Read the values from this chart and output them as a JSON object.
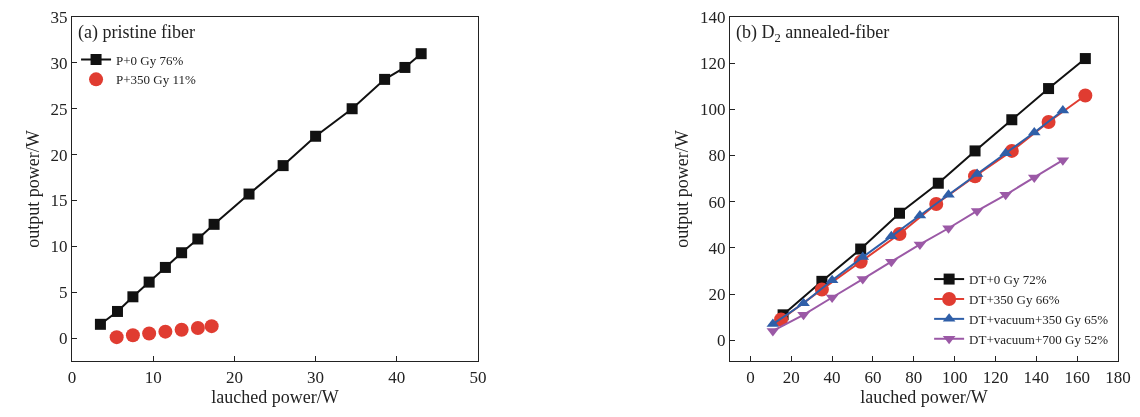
{
  "chart_data": [
    {
      "type": "line",
      "title": "(a) pristine fiber",
      "xlabel": "lauched power/W",
      "ylabel": "output power/W",
      "xlim": [
        0,
        50
      ],
      "xticks": [
        0,
        10,
        20,
        30,
        40,
        50
      ],
      "ylim": [
        -2.5,
        35
      ],
      "yticks": [
        0,
        5,
        10,
        15,
        20,
        25,
        30,
        35
      ],
      "grid": false,
      "legend": "top left",
      "series": [
        {
          "name": "P+0 Gy 76%",
          "color": "#111111",
          "marker": "square",
          "x": [
            3.5,
            5.6,
            7.5,
            9.5,
            11.5,
            13.5,
            15.5,
            17.5,
            21.8,
            26,
            30,
            34.5,
            38.5,
            41,
            43
          ],
          "values": [
            1.5,
            2.9,
            4.5,
            6.1,
            7.7,
            9.3,
            10.8,
            12.4,
            15.7,
            18.8,
            22,
            25,
            28.2,
            29.5,
            31
          ]
        },
        {
          "name": "P+350 Gy 11%",
          "type": "scatter",
          "color": "#e03c31",
          "marker": "circle",
          "x": [
            5.5,
            7.5,
            9.5,
            11.5,
            13.5,
            15.5,
            17.2
          ],
          "values": [
            0.1,
            0.3,
            0.5,
            0.7,
            0.9,
            1.1,
            1.3
          ]
        }
      ]
    },
    {
      "type": "line",
      "title": "(b) D$_{2}$ annealed-fiber",
      "xlabel": "lauched power/W",
      "ylabel": "output power/W",
      "xlim": [
        -10,
        180
      ],
      "xticks": [
        0,
        20,
        40,
        60,
        80,
        100,
        120,
        140,
        160,
        180
      ],
      "ylim": [
        -9,
        140
      ],
      "yticks": [
        0,
        20,
        40,
        60,
        80,
        100,
        120,
        140
      ],
      "grid": false,
      "legend": "bottom right",
      "series": [
        {
          "name": "DT+0 Gy 72%",
          "color": "#111111",
          "marker": "square",
          "x": [
            16,
            35,
            54,
            73,
            92,
            110,
            128,
            146,
            164
          ],
          "values": [
            11,
            25.5,
            39.5,
            55,
            68,
            82,
            95.5,
            109,
            122
          ]
        },
        {
          "name": "DT+350 Gy 66%",
          "color": "#e03c31",
          "marker": "circle",
          "x": [
            15,
            35,
            54,
            73,
            91,
            110,
            128,
            146,
            164
          ],
          "values": [
            9,
            22,
            34,
            46,
            59,
            71,
            82,
            94.5,
            106
          ]
        },
        {
          "name": "DT+vacuum+350 Gy 65%",
          "color": "#2f5fa8",
          "marker": "triangle",
          "x": [
            11,
            26,
            40,
            55,
            69,
            83,
            97,
            111,
            125,
            139,
            153
          ],
          "values": [
            7,
            16,
            26,
            36,
            45,
            54,
            63,
            72,
            81,
            90,
            99.5
          ]
        },
        {
          "name": "DT+vacuum+700 Gy 52%",
          "color": "#9b59a6",
          "marker": "triangle-down",
          "x": [
            11,
            26,
            40,
            55,
            69,
            83,
            97,
            111,
            125,
            139,
            153
          ],
          "values": [
            4,
            11,
            18.5,
            26.5,
            34,
            41.5,
            48.5,
            56,
            63,
            70.5,
            78
          ]
        }
      ]
    }
  ]
}
